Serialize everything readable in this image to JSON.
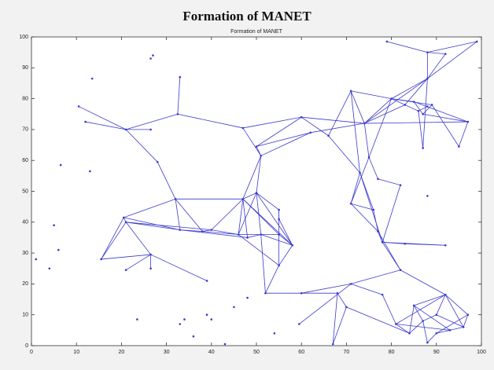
{
  "chart_data": {
    "type": "network",
    "title": "Formation of MANET",
    "subtitle": "Formation of MANET",
    "color": "#3a3acc",
    "xlim": [
      0,
      100
    ],
    "ylim": [
      0,
      100
    ],
    "xticks": [
      0,
      10,
      20,
      30,
      40,
      50,
      60,
      70,
      80,
      90,
      100
    ],
    "yticks": [
      0,
      10,
      20,
      30,
      40,
      50,
      60,
      70,
      80,
      90,
      100
    ],
    "nodes": {
      "x": [
        1,
        4,
        5,
        6,
        6.5,
        13,
        13.5,
        26.5,
        27,
        23.5,
        33,
        34,
        36,
        39,
        40,
        43,
        45,
        54,
        48,
        10.5,
        12,
        21,
        26.5,
        32.5,
        33,
        28,
        20.5,
        21,
        15.5,
        26.5,
        21,
        26.5,
        39,
        32,
        33,
        38,
        40,
        47,
        51,
        50,
        47,
        50,
        46,
        48,
        55,
        55,
        55,
        58,
        51,
        55,
        52,
        60,
        60,
        62,
        66,
        71,
        74,
        73,
        75,
        71,
        77,
        76,
        82,
        77,
        78,
        83,
        92,
        88,
        79,
        88,
        92,
        99,
        88,
        80,
        83,
        85,
        86,
        87,
        88,
        89,
        97,
        87,
        95,
        59.5,
        68,
        71,
        67,
        70,
        78,
        82,
        81,
        84,
        87,
        90,
        92,
        96,
        97,
        88,
        90,
        93,
        85
      ],
      "y": [
        28,
        25,
        39,
        31,
        58.5,
        56.5,
        86.5,
        93,
        94,
        8.5,
        7,
        8.5,
        3,
        10,
        8.5,
        0.5,
        12.5,
        4,
        15.5,
        77.5,
        72.5,
        70,
        70,
        75,
        87,
        59.5,
        41.5,
        40,
        28,
        29.5,
        24.5,
        25,
        21,
        47.5,
        37.5,
        37,
        37.5,
        70.5,
        61.5,
        64.5,
        47.5,
        49.5,
        36,
        35,
        44,
        41,
        36,
        32.5,
        36,
        26,
        17,
        17,
        74,
        69,
        68,
        82.5,
        72,
        56,
        61,
        46,
        54,
        44,
        52,
        37,
        33.5,
        33,
        32.5,
        48.5,
        98.5,
        95,
        94.5,
        98.5,
        86.5,
        80,
        78,
        79,
        76,
        75,
        77.5,
        78,
        72.5,
        64,
        64.5,
        7,
        17,
        20,
        0.5,
        12.5,
        16.5,
        24.5,
        7,
        4,
        8,
        10,
        16.5,
        6,
        10,
        1,
        4,
        5,
        13
      ]
    },
    "edges": [
      [
        19,
        21
      ],
      [
        20,
        21
      ],
      [
        21,
        22
      ],
      [
        21,
        23
      ],
      [
        23,
        24
      ],
      [
        21,
        25
      ],
      [
        25,
        33
      ],
      [
        23,
        37
      ],
      [
        26,
        27
      ],
      [
        26,
        33
      ],
      [
        27,
        28
      ],
      [
        26,
        28
      ],
      [
        28,
        29
      ],
      [
        29,
        30
      ],
      [
        29,
        31
      ],
      [
        29,
        32
      ],
      [
        27,
        29
      ],
      [
        26,
        34
      ],
      [
        27,
        34
      ],
      [
        33,
        34
      ],
      [
        33,
        35
      ],
      [
        34,
        35
      ],
      [
        35,
        36
      ],
      [
        27,
        36
      ],
      [
        33,
        40
      ],
      [
        36,
        40
      ],
      [
        36,
        42
      ],
      [
        35,
        42
      ],
      [
        34,
        43
      ],
      [
        40,
        42
      ],
      [
        40,
        41
      ],
      [
        41,
        42
      ],
      [
        40,
        43
      ],
      [
        41,
        44
      ],
      [
        41,
        47
      ],
      [
        40,
        46
      ],
      [
        42,
        46
      ],
      [
        43,
        48
      ],
      [
        44,
        45
      ],
      [
        45,
        47
      ],
      [
        44,
        49
      ],
      [
        46,
        47
      ],
      [
        48,
        47
      ],
      [
        42,
        49
      ],
      [
        41,
        48
      ],
      [
        40,
        47
      ],
      [
        48,
        50
      ],
      [
        50,
        51
      ],
      [
        49,
        47
      ],
      [
        37,
        38
      ],
      [
        38,
        39
      ],
      [
        37,
        52
      ],
      [
        39,
        52
      ],
      [
        39,
        53
      ],
      [
        38,
        53
      ],
      [
        38,
        41
      ],
      [
        38,
        40
      ],
      [
        52,
        54
      ],
      [
        52,
        56
      ],
      [
        53,
        56
      ],
      [
        54,
        55
      ],
      [
        55,
        56
      ],
      [
        55,
        73
      ],
      [
        73,
        56
      ],
      [
        56,
        80
      ],
      [
        54,
        57
      ],
      [
        56,
        58
      ],
      [
        57,
        59
      ],
      [
        58,
        59
      ],
      [
        58,
        60
      ],
      [
        57,
        61
      ],
      [
        59,
        61
      ],
      [
        60,
        62
      ],
      [
        61,
        63
      ],
      [
        62,
        64
      ],
      [
        63,
        64
      ],
      [
        64,
        65
      ],
      [
        65,
        66
      ],
      [
        64,
        66
      ],
      [
        59,
        63
      ],
      [
        57,
        64
      ],
      [
        55,
        57
      ],
      [
        68,
        69
      ],
      [
        69,
        70
      ],
      [
        69,
        72
      ],
      [
        70,
        72
      ],
      [
        71,
        72
      ],
      [
        71,
        69
      ],
      [
        72,
        73
      ],
      [
        72,
        74
      ],
      [
        72,
        56
      ],
      [
        72,
        81
      ],
      [
        73,
        74
      ],
      [
        73,
        75
      ],
      [
        74,
        76
      ],
      [
        75,
        77
      ],
      [
        76,
        78
      ],
      [
        77,
        79
      ],
      [
        73,
        79
      ],
      [
        75,
        80
      ],
      [
        77,
        80
      ],
      [
        79,
        82
      ],
      [
        76,
        81
      ],
      [
        80,
        82
      ],
      [
        74,
        56
      ],
      [
        73,
        58
      ],
      [
        51,
        84
      ],
      [
        83,
        85
      ],
      [
        85,
        89
      ],
      [
        85,
        88
      ],
      [
        84,
        86
      ],
      [
        84,
        87
      ],
      [
        87,
        86
      ],
      [
        87,
        91
      ],
      [
        88,
        90
      ],
      [
        90,
        91
      ],
      [
        91,
        92
      ],
      [
        92,
        93
      ],
      [
        93,
        94
      ],
      [
        94,
        95
      ],
      [
        94,
        96
      ],
      [
        96,
        95
      ],
      [
        92,
        97
      ],
      [
        97,
        98
      ],
      [
        98,
        99
      ],
      [
        99,
        95
      ],
      [
        90,
        94
      ],
      [
        100,
        94
      ],
      [
        100,
        92
      ],
      [
        100,
        91
      ],
      [
        100,
        99
      ],
      [
        89,
        94
      ],
      [
        89,
        64
      ],
      [
        63,
        89
      ],
      [
        90,
        99
      ],
      [
        93,
        95
      ],
      [
        98,
        96
      ],
      [
        49,
        50
      ],
      [
        51,
        85
      ]
    ]
  }
}
